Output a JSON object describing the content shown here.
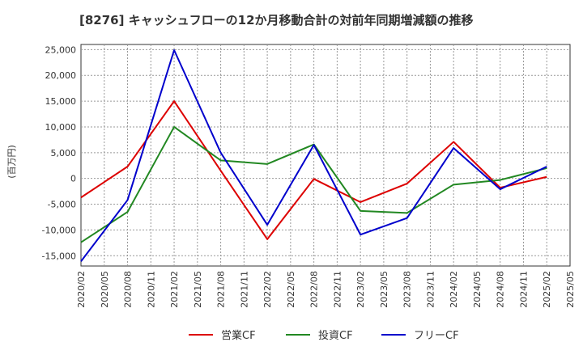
{
  "chart_data": {
    "type": "line",
    "title": "[8276]  キャッシュフローの12か月移動合計の対前年同期増減額の推移",
    "ylabel": "(百万円)",
    "xlabel": "",
    "ylim": [
      -17000,
      26000
    ],
    "yticks": [
      25000,
      20000,
      15000,
      10000,
      5000,
      0,
      -5000,
      -10000,
      -15000
    ],
    "ytick_labels": [
      "25,000",
      "20,000",
      "15,000",
      "10,000",
      "5,000",
      "0",
      "-5,000",
      "-10,000",
      "-15,000"
    ],
    "xtick_labels": [
      "2020/02",
      "2020/05",
      "2020/08",
      "2020/11",
      "2021/02",
      "2021/05",
      "2021/08",
      "2021/11",
      "2022/02",
      "2022/05",
      "2022/08",
      "2022/11",
      "2023/02",
      "2023/05",
      "2023/08",
      "2023/11",
      "2024/02",
      "2024/05",
      "2024/08",
      "2024/11",
      "2025/02",
      "2025/05"
    ],
    "x_points": [
      "2020/02",
      "2020/08",
      "2021/02",
      "2021/08",
      "2022/02",
      "2022/08",
      "2023/02",
      "2023/08",
      "2024/02",
      "2024/08",
      "2025/02"
    ],
    "grid": true,
    "legend_position": "bottom",
    "series": [
      {
        "name": "営業CF",
        "color": "#dd0000",
        "values": [
          -3700,
          2300,
          15000,
          1500,
          -11800,
          -100,
          -4600,
          -1000,
          7100,
          -1800,
          300
        ]
      },
      {
        "name": "投資CF",
        "color": "#228822",
        "values": [
          -12400,
          -6500,
          10000,
          3500,
          2800,
          6600,
          -6300,
          -6700,
          -1200,
          -300,
          2000
        ]
      },
      {
        "name": "フリーCF",
        "color": "#0000cc",
        "values": [
          -16100,
          -4200,
          24900,
          5000,
          -9000,
          6500,
          -10900,
          -7700,
          5900,
          -2100,
          2300
        ]
      }
    ]
  }
}
